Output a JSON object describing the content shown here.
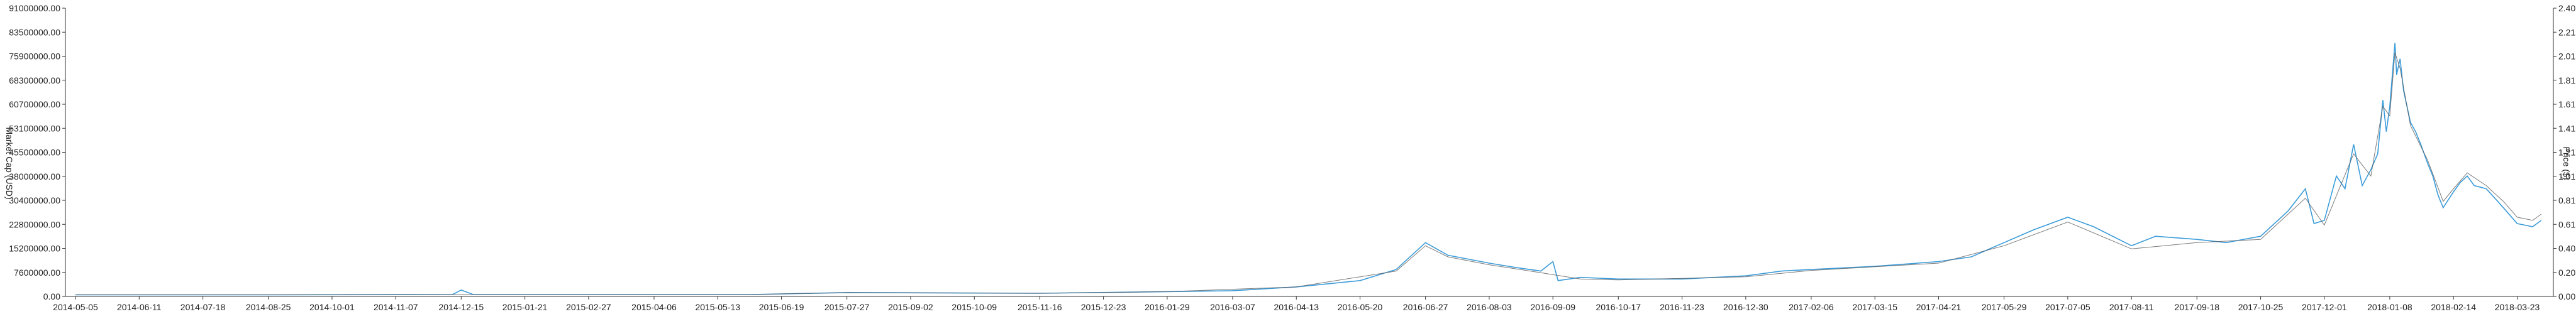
{
  "chart_data": {
    "type": "line",
    "y_left": {
      "label": "Market Cap (USD)",
      "ticks": [
        "0.00",
        "7600000.00",
        "15200000.00",
        "22800000.00",
        "30400000.00",
        "38000000.00",
        "45500000.00",
        "53100000.00",
        "60700000.00",
        "68300000.00",
        "75900000.00",
        "83500000.00",
        "91000000.00"
      ],
      "range": [
        0,
        91000000
      ]
    },
    "y_right": {
      "label": "Price ($)",
      "ticks": [
        "0.00",
        "0.20",
        "0.40",
        "0.61",
        "0.81",
        "1.01",
        "1.21",
        "1.41",
        "1.61",
        "1.81",
        "2.01",
        "2.21",
        "2.40"
      ],
      "range": [
        0,
        2.4
      ]
    },
    "x_ticks": [
      "2014-05-05",
      "2014-06-11",
      "2014-07-18",
      "2014-08-25",
      "2014-10-01",
      "2014-11-07",
      "2014-12-15",
      "2015-01-21",
      "2015-02-27",
      "2015-04-06",
      "2015-05-13",
      "2015-06-19",
      "2015-07-27",
      "2015-09-02",
      "2015-10-09",
      "2015-11-16",
      "2015-12-23",
      "2016-01-29",
      "2016-03-07",
      "2016-04-13",
      "2016-05-20",
      "2016-06-27",
      "2016-08-03",
      "2016-09-09",
      "2016-10-17",
      "2016-11-23",
      "2016-12-30",
      "2017-02-06",
      "2017-03-15",
      "2017-04-21",
      "2017-05-29",
      "2017-07-05",
      "2017-08-11",
      "2017-09-18",
      "2017-10-25",
      "2017-12-01",
      "2018-01-08",
      "2018-02-14",
      "2018-03-23"
    ],
    "series": [
      {
        "color": "#3a9bd9",
        "points": [
          [
            "2014-05-05",
            0.5
          ],
          [
            "2014-09-01",
            0.5
          ],
          [
            "2014-12-10",
            0.6
          ],
          [
            "2014-12-15",
            2.0
          ],
          [
            "2014-12-22",
            0.6
          ],
          [
            "2015-06-01",
            0.6
          ],
          [
            "2015-07-27",
            1.2
          ],
          [
            "2015-11-16",
            1.0
          ],
          [
            "2016-01-29",
            1.5
          ],
          [
            "2016-03-07",
            1.8
          ],
          [
            "2016-04-13",
            3.0
          ],
          [
            "2016-05-20",
            5.0
          ],
          [
            "2016-06-10",
            8.5
          ],
          [
            "2016-06-27",
            17.0
          ],
          [
            "2016-07-10",
            13.0
          ],
          [
            "2016-08-03",
            10.5
          ],
          [
            "2016-08-20",
            9.0
          ],
          [
            "2016-09-02",
            8.0
          ],
          [
            "2016-09-09",
            11.0
          ],
          [
            "2016-09-12",
            5.0
          ],
          [
            "2016-09-25",
            6.0
          ],
          [
            "2016-10-17",
            5.5
          ],
          [
            "2016-11-23",
            5.5
          ],
          [
            "2016-12-30",
            6.5
          ],
          [
            "2017-01-20",
            8.0
          ],
          [
            "2017-02-06",
            8.5
          ],
          [
            "2017-03-15",
            9.5
          ],
          [
            "2017-04-21",
            11.0
          ],
          [
            "2017-05-10",
            12.5
          ],
          [
            "2017-05-29",
            17.0
          ],
          [
            "2017-06-15",
            21.0
          ],
          [
            "2017-07-05",
            25.0
          ],
          [
            "2017-07-20",
            22.0
          ],
          [
            "2017-08-11",
            16.0
          ],
          [
            "2017-08-25",
            19.0
          ],
          [
            "2017-09-18",
            18.0
          ],
          [
            "2017-10-05",
            17.0
          ],
          [
            "2017-10-25",
            19.0
          ],
          [
            "2017-11-10",
            27.0
          ],
          [
            "2017-11-20",
            34.0
          ],
          [
            "2017-11-25",
            23.0
          ],
          [
            "2017-12-01",
            24.0
          ],
          [
            "2017-12-08",
            38.0
          ],
          [
            "2017-12-13",
            34.0
          ],
          [
            "2017-12-18",
            48.0
          ],
          [
            "2017-12-23",
            35.0
          ],
          [
            "2017-12-28",
            40.0
          ],
          [
            "2018-01-01",
            45.0
          ],
          [
            "2018-01-04",
            62.0
          ],
          [
            "2018-01-06",
            52.0
          ],
          [
            "2018-01-08",
            60.0
          ],
          [
            "2018-01-11",
            80.0
          ],
          [
            "2018-01-12",
            70.0
          ],
          [
            "2018-01-14",
            75.0
          ],
          [
            "2018-01-16",
            65.0
          ],
          [
            "2018-01-20",
            55.0
          ],
          [
            "2018-01-23",
            52.0
          ],
          [
            "2018-01-26",
            48.0
          ],
          [
            "2018-01-30",
            42.0
          ],
          [
            "2018-02-02",
            38.0
          ],
          [
            "2018-02-05",
            32.0
          ],
          [
            "2018-02-08",
            28.0
          ],
          [
            "2018-02-14",
            33.0
          ],
          [
            "2018-02-18",
            36.0
          ],
          [
            "2018-02-22",
            38.0
          ],
          [
            "2018-02-26",
            35.0
          ],
          [
            "2018-03-05",
            34.0
          ],
          [
            "2018-03-10",
            31.0
          ],
          [
            "2018-03-15",
            28.0
          ],
          [
            "2018-03-23",
            23.0
          ],
          [
            "2018-04-01",
            22.0
          ],
          [
            "2018-04-06",
            24.0
          ]
        ]
      },
      {
        "color": "#5a5a5a",
        "points": [
          [
            "2014-05-05",
            0.5
          ],
          [
            "2014-09-01",
            0.5
          ],
          [
            "2014-12-15",
            0.6
          ],
          [
            "2015-06-01",
            0.6
          ],
          [
            "2015-07-27",
            1.2
          ],
          [
            "2015-11-16",
            1.0
          ],
          [
            "2016-01-29",
            1.5
          ],
          [
            "2016-04-13",
            3.0
          ],
          [
            "2016-06-10",
            8.0
          ],
          [
            "2016-06-27",
            16.0
          ],
          [
            "2016-07-10",
            12.5
          ],
          [
            "2016-08-03",
            10.0
          ],
          [
            "2016-09-02",
            7.5
          ],
          [
            "2016-09-25",
            5.5
          ],
          [
            "2016-10-17",
            5.2
          ],
          [
            "2016-12-30",
            6.2
          ],
          [
            "2017-02-06",
            8.2
          ],
          [
            "2017-04-21",
            10.5
          ],
          [
            "2017-05-29",
            16.0
          ],
          [
            "2017-07-05",
            23.5
          ],
          [
            "2017-08-11",
            15.0
          ],
          [
            "2017-09-18",
            17.0
          ],
          [
            "2017-10-25",
            18.0
          ],
          [
            "2017-11-20",
            31.0
          ],
          [
            "2017-12-01",
            22.5
          ],
          [
            "2017-12-18",
            45.0
          ],
          [
            "2017-12-28",
            38.0
          ],
          [
            "2018-01-04",
            60.0
          ],
          [
            "2018-01-08",
            57.0
          ],
          [
            "2018-01-11",
            77.0
          ],
          [
            "2018-01-14",
            72.0
          ],
          [
            "2018-01-20",
            54.0
          ],
          [
            "2018-01-30",
            43.0
          ],
          [
            "2018-02-08",
            30.0
          ],
          [
            "2018-02-14",
            34.0
          ],
          [
            "2018-02-22",
            39.0
          ],
          [
            "2018-03-05",
            35.0
          ],
          [
            "2018-03-15",
            30.0
          ],
          [
            "2018-03-23",
            25.0
          ],
          [
            "2018-04-01",
            24.0
          ],
          [
            "2018-04-06",
            26.0
          ]
        ]
      }
    ]
  }
}
